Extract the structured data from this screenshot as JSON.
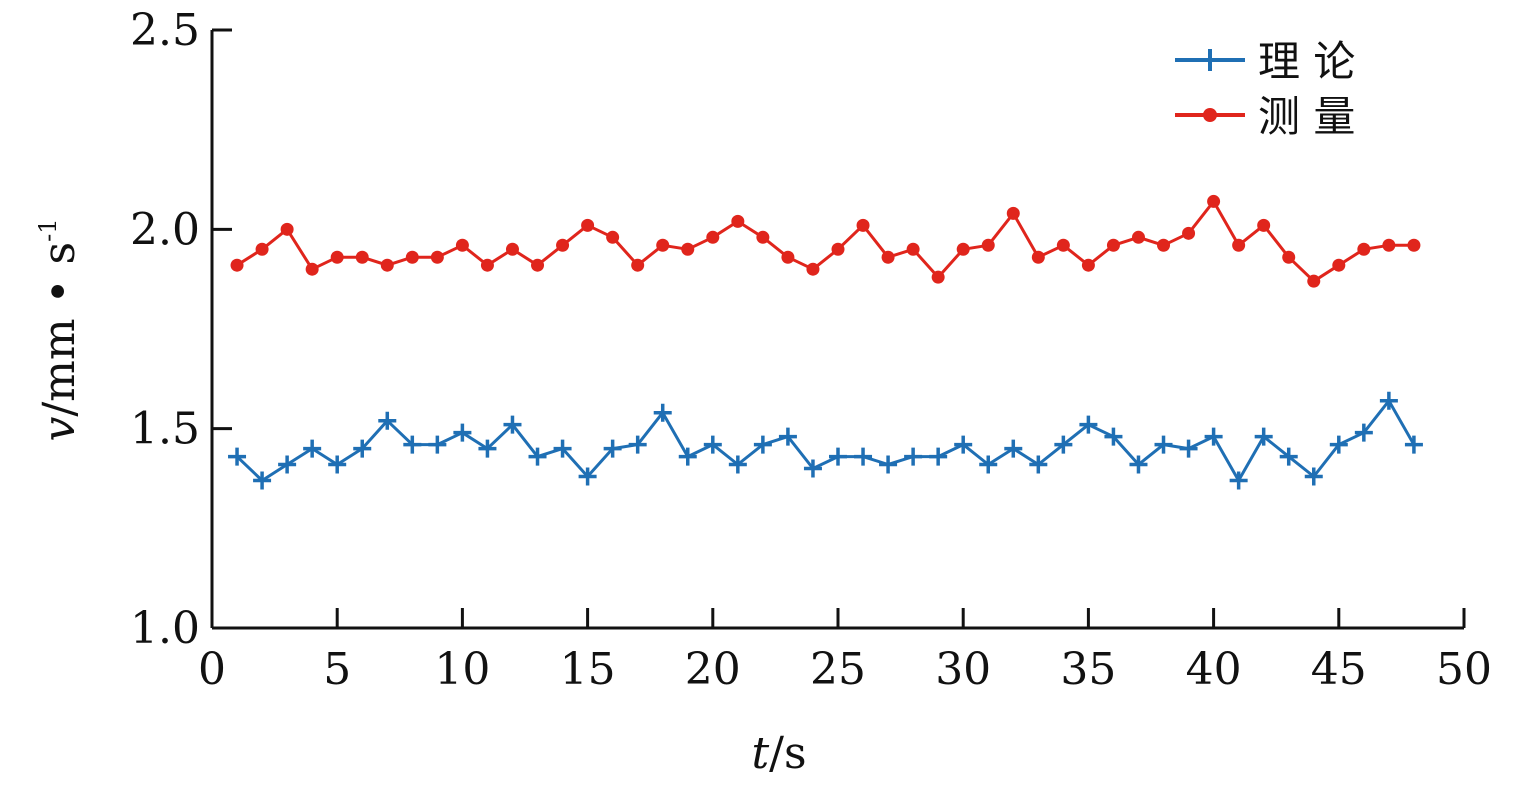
{
  "chart_data": {
    "type": "line",
    "title": "",
    "xlabel_var": "t",
    "xlabel_unit": "/s",
    "ylabel_var": "v",
    "ylabel_unit": "/mm • s",
    "ylabel_exp": "-1",
    "xlim": [
      0,
      50
    ],
    "ylim": [
      1.0,
      2.5
    ],
    "x_ticks": [
      0,
      5,
      10,
      15,
      20,
      25,
      30,
      35,
      40,
      45,
      50
    ],
    "x_tick_labels": [
      "0",
      "5",
      "10",
      "15",
      "20",
      "25",
      "30",
      "35",
      "40",
      "45",
      "50"
    ],
    "y_ticks": [
      1.0,
      1.5,
      2.0,
      2.5
    ],
    "y_tick_labels": [
      "1.0",
      "1.5",
      "2.0",
      "2.5"
    ],
    "grid": false,
    "legend_position": "top-right",
    "x": [
      1,
      2,
      3,
      4,
      5,
      6,
      7,
      8,
      9,
      10,
      11,
      12,
      13,
      14,
      15,
      16,
      17,
      18,
      19,
      20,
      21,
      22,
      23,
      24,
      25,
      26,
      27,
      28,
      29,
      30,
      31,
      32,
      33,
      34,
      35,
      36,
      37,
      38,
      39,
      40,
      41,
      42,
      43,
      44,
      45,
      46,
      47,
      48
    ],
    "series": [
      {
        "name": "理 论",
        "color": "#1f6fb4",
        "marker": "plus",
        "values": [
          1.43,
          1.37,
          1.41,
          1.45,
          1.41,
          1.45,
          1.52,
          1.46,
          1.46,
          1.49,
          1.45,
          1.51,
          1.43,
          1.45,
          1.38,
          1.45,
          1.46,
          1.54,
          1.43,
          1.46,
          1.41,
          1.46,
          1.48,
          1.4,
          1.43,
          1.43,
          1.41,
          1.43,
          1.43,
          1.46,
          1.41,
          1.45,
          1.41,
          1.46,
          1.51,
          1.48,
          1.41,
          1.46,
          1.45,
          1.48,
          1.37,
          1.48,
          1.43,
          1.38,
          1.46,
          1.49,
          1.57,
          1.46
        ]
      },
      {
        "name": "测 量",
        "color": "#e0251c",
        "marker": "circle",
        "values": [
          1.91,
          1.95,
          2.0,
          1.9,
          1.93,
          1.93,
          1.91,
          1.93,
          1.93,
          1.96,
          1.91,
          1.95,
          1.91,
          1.96,
          2.01,
          1.98,
          1.91,
          1.96,
          1.95,
          1.98,
          2.02,
          1.98,
          1.93,
          1.9,
          1.95,
          2.01,
          1.93,
          1.95,
          1.88,
          1.95,
          1.96,
          2.04,
          1.93,
          1.96,
          1.91,
          1.96,
          1.98,
          1.96,
          1.99,
          2.07,
          1.96,
          2.01,
          1.93,
          1.87,
          1.91,
          1.95,
          1.96,
          1.96
        ]
      }
    ]
  }
}
